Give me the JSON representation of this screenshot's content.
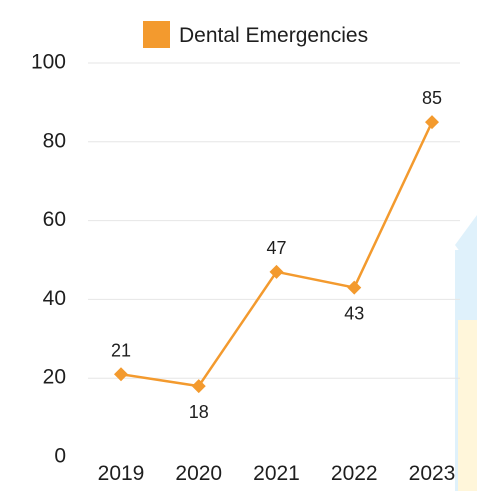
{
  "chart_data": {
    "type": "line",
    "title": "",
    "xlabel": "",
    "ylabel": "",
    "categories": [
      "2019",
      "2020",
      "2021",
      "2022",
      "2023"
    ],
    "series": [
      {
        "name": "Dental Emergencies",
        "values": [
          21,
          18,
          47,
          43,
          85
        ],
        "color": "#f39a2e"
      }
    ],
    "ylim": [
      0,
      100
    ],
    "yticks": [
      0,
      20,
      40,
      60,
      80,
      100
    ],
    "grid": true,
    "legend_position": "top",
    "data_labels": [
      "21",
      "18",
      "47",
      "43",
      "85"
    ]
  },
  "colors": {
    "gridline": "#e6e6e6",
    "text": "#1e1e1e",
    "background": "#ffffff",
    "decor_light_blue": "#dff1fb",
    "decor_light_yellow": "#fff6da"
  }
}
